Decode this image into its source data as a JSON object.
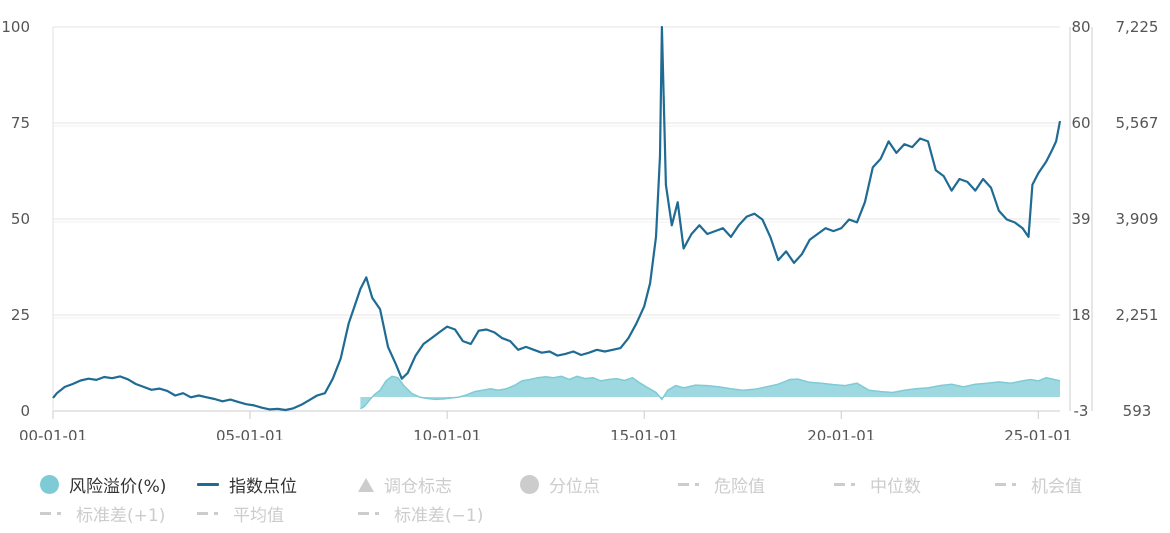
{
  "chart_data": {
    "type": "line",
    "x_axis": {
      "tick_labels": [
        "00-01-01",
        "05-01-01",
        "10-01-01",
        "15-01-01",
        "20-01-01",
        "25-01-01"
      ],
      "tick_dates": [
        2000.0,
        2005.0,
        2010.0,
        2015.0,
        2020.0,
        2025.0
      ],
      "range": [
        2000.0,
        2025.55
      ]
    },
    "y_axis_left": {
      "tick_labels": [
        "0",
        "25",
        "50",
        "75",
        "100"
      ],
      "range": [
        0,
        100
      ]
    },
    "y_axis_right_1": {
      "tick_labels": [
        "-3",
        "18",
        "39",
        "60",
        "80"
      ],
      "range": [
        -3,
        80
      ]
    },
    "y_axis_right_2": {
      "tick_labels": [
        "593",
        "2,251",
        "3,909",
        "5,567",
        "7,225"
      ],
      "range": [
        593,
        7225
      ]
    },
    "grid": true,
    "legend_position": "bottom",
    "series": [
      {
        "name": "风险溢价(%)",
        "type": "area",
        "axis": "right_1",
        "color": "#7ecbd6",
        "points": [
          [
            2007.8,
            -2.5
          ],
          [
            2007.9,
            -2.0
          ],
          [
            2008.0,
            -1.0
          ],
          [
            2008.15,
            0.5
          ],
          [
            2008.3,
            1.5
          ],
          [
            2008.45,
            3.5
          ],
          [
            2008.6,
            4.5
          ],
          [
            2008.75,
            4.2
          ],
          [
            2008.9,
            2.5
          ],
          [
            2009.1,
            0.8
          ],
          [
            2009.3,
            0.0
          ],
          [
            2009.5,
            -0.3
          ],
          [
            2009.7,
            -0.5
          ],
          [
            2009.9,
            -0.4
          ],
          [
            2010.1,
            -0.2
          ],
          [
            2010.3,
            0.0
          ],
          [
            2010.5,
            0.5
          ],
          [
            2010.7,
            1.2
          ],
          [
            2010.9,
            1.5
          ],
          [
            2011.1,
            1.8
          ],
          [
            2011.3,
            1.5
          ],
          [
            2011.5,
            1.8
          ],
          [
            2011.7,
            2.5
          ],
          [
            2011.9,
            3.5
          ],
          [
            2012.1,
            3.8
          ],
          [
            2012.3,
            4.2
          ],
          [
            2012.5,
            4.4
          ],
          [
            2012.7,
            4.2
          ],
          [
            2012.9,
            4.5
          ],
          [
            2013.1,
            3.8
          ],
          [
            2013.3,
            4.5
          ],
          [
            2013.5,
            4.0
          ],
          [
            2013.7,
            4.2
          ],
          [
            2013.9,
            3.5
          ],
          [
            2014.1,
            3.8
          ],
          [
            2014.3,
            4.0
          ],
          [
            2014.5,
            3.6
          ],
          [
            2014.7,
            4.2
          ],
          [
            2014.9,
            3.0
          ],
          [
            2015.1,
            2.0
          ],
          [
            2015.3,
            1.0
          ],
          [
            2015.45,
            -0.5
          ],
          [
            2015.6,
            1.5
          ],
          [
            2015.8,
            2.5
          ],
          [
            2016.0,
            2.0
          ],
          [
            2016.3,
            2.6
          ],
          [
            2016.6,
            2.5
          ],
          [
            2016.9,
            2.2
          ],
          [
            2017.2,
            1.8
          ],
          [
            2017.5,
            1.5
          ],
          [
            2017.8,
            1.7
          ],
          [
            2018.1,
            2.2
          ],
          [
            2018.4,
            2.8
          ],
          [
            2018.7,
            3.8
          ],
          [
            2018.9,
            3.9
          ],
          [
            2019.2,
            3.2
          ],
          [
            2019.5,
            3.0
          ],
          [
            2019.8,
            2.7
          ],
          [
            2020.1,
            2.5
          ],
          [
            2020.4,
            3.0
          ],
          [
            2020.7,
            1.5
          ],
          [
            2021.0,
            1.2
          ],
          [
            2021.3,
            1.0
          ],
          [
            2021.6,
            1.5
          ],
          [
            2021.9,
            1.8
          ],
          [
            2022.2,
            2.0
          ],
          [
            2022.5,
            2.5
          ],
          [
            2022.8,
            2.8
          ],
          [
            2023.1,
            2.2
          ],
          [
            2023.4,
            2.8
          ],
          [
            2023.7,
            3.0
          ],
          [
            2024.0,
            3.3
          ],
          [
            2024.3,
            3.0
          ],
          [
            2024.6,
            3.5
          ],
          [
            2024.8,
            3.8
          ],
          [
            2025.0,
            3.5
          ],
          [
            2025.2,
            4.2
          ],
          [
            2025.4,
            3.8
          ],
          [
            2025.55,
            3.5
          ]
        ]
      },
      {
        "name": "指数点位",
        "type": "line",
        "axis": "right_2",
        "color": "#1f6b94",
        "points": [
          [
            2000.0,
            820
          ],
          [
            2000.1,
            900
          ],
          [
            2000.3,
            1010
          ],
          [
            2000.5,
            1060
          ],
          [
            2000.7,
            1120
          ],
          [
            2000.9,
            1150
          ],
          [
            2001.1,
            1130
          ],
          [
            2001.3,
            1180
          ],
          [
            2001.5,
            1160
          ],
          [
            2001.7,
            1190
          ],
          [
            2001.9,
            1140
          ],
          [
            2002.1,
            1060
          ],
          [
            2002.3,
            1010
          ],
          [
            2002.5,
            960
          ],
          [
            2002.7,
            980
          ],
          [
            2002.9,
            940
          ],
          [
            2003.1,
            860
          ],
          [
            2003.3,
            900
          ],
          [
            2003.5,
            830
          ],
          [
            2003.7,
            860
          ],
          [
            2003.9,
            830
          ],
          [
            2004.1,
            800
          ],
          [
            2004.3,
            760
          ],
          [
            2004.5,
            790
          ],
          [
            2004.7,
            750
          ],
          [
            2004.9,
            710
          ],
          [
            2005.1,
            690
          ],
          [
            2005.3,
            650
          ],
          [
            2005.5,
            620
          ],
          [
            2005.7,
            630
          ],
          [
            2005.9,
            610
          ],
          [
            2006.1,
            640
          ],
          [
            2006.3,
            700
          ],
          [
            2006.5,
            780
          ],
          [
            2006.7,
            860
          ],
          [
            2006.9,
            900
          ],
          [
            2007.1,
            1150
          ],
          [
            2007.3,
            1500
          ],
          [
            2007.5,
            2100
          ],
          [
            2007.65,
            2400
          ],
          [
            2007.8,
            2700
          ],
          [
            2007.95,
            2900
          ],
          [
            2008.1,
            2550
          ],
          [
            2008.3,
            2350
          ],
          [
            2008.5,
            1700
          ],
          [
            2008.7,
            1400
          ],
          [
            2008.85,
            1150
          ],
          [
            2009.0,
            1250
          ],
          [
            2009.2,
            1550
          ],
          [
            2009.4,
            1750
          ],
          [
            2009.6,
            1850
          ],
          [
            2009.8,
            1950
          ],
          [
            2010.0,
            2050
          ],
          [
            2010.2,
            2000
          ],
          [
            2010.4,
            1800
          ],
          [
            2010.6,
            1750
          ],
          [
            2010.8,
            1980
          ],
          [
            2011.0,
            2000
          ],
          [
            2011.2,
            1950
          ],
          [
            2011.4,
            1850
          ],
          [
            2011.6,
            1800
          ],
          [
            2011.8,
            1650
          ],
          [
            2012.0,
            1700
          ],
          [
            2012.2,
            1650
          ],
          [
            2012.4,
            1600
          ],
          [
            2012.6,
            1620
          ],
          [
            2012.8,
            1550
          ],
          [
            2013.0,
            1580
          ],
          [
            2013.2,
            1620
          ],
          [
            2013.4,
            1560
          ],
          [
            2013.6,
            1600
          ],
          [
            2013.8,
            1650
          ],
          [
            2014.0,
            1620
          ],
          [
            2014.2,
            1650
          ],
          [
            2014.4,
            1680
          ],
          [
            2014.6,
            1850
          ],
          [
            2014.8,
            2100
          ],
          [
            2015.0,
            2400
          ],
          [
            2015.15,
            2800
          ],
          [
            2015.3,
            3600
          ],
          [
            2015.4,
            5000
          ],
          [
            2015.45,
            7225
          ],
          [
            2015.55,
            4500
          ],
          [
            2015.7,
            3800
          ],
          [
            2015.85,
            4200
          ],
          [
            2016.0,
            3400
          ],
          [
            2016.2,
            3650
          ],
          [
            2016.4,
            3800
          ],
          [
            2016.6,
            3650
          ],
          [
            2016.8,
            3700
          ],
          [
            2017.0,
            3750
          ],
          [
            2017.2,
            3600
          ],
          [
            2017.4,
            3800
          ],
          [
            2017.6,
            3950
          ],
          [
            2017.8,
            4000
          ],
          [
            2018.0,
            3900
          ],
          [
            2018.2,
            3600
          ],
          [
            2018.4,
            3200
          ],
          [
            2018.6,
            3350
          ],
          [
            2018.8,
            3150
          ],
          [
            2019.0,
            3300
          ],
          [
            2019.2,
            3550
          ],
          [
            2019.4,
            3650
          ],
          [
            2019.6,
            3750
          ],
          [
            2019.8,
            3700
          ],
          [
            2020.0,
            3750
          ],
          [
            2020.2,
            3900
          ],
          [
            2020.4,
            3850
          ],
          [
            2020.6,
            4200
          ],
          [
            2020.8,
            4800
          ],
          [
            2021.0,
            4950
          ],
          [
            2021.2,
            5250
          ],
          [
            2021.4,
            5050
          ],
          [
            2021.6,
            5200
          ],
          [
            2021.8,
            5150
          ],
          [
            2022.0,
            5300
          ],
          [
            2022.2,
            5250
          ],
          [
            2022.4,
            4750
          ],
          [
            2022.6,
            4650
          ],
          [
            2022.8,
            4400
          ],
          [
            2023.0,
            4600
          ],
          [
            2023.2,
            4550
          ],
          [
            2023.4,
            4400
          ],
          [
            2023.6,
            4600
          ],
          [
            2023.8,
            4450
          ],
          [
            2024.0,
            4050
          ],
          [
            2024.2,
            3900
          ],
          [
            2024.4,
            3850
          ],
          [
            2024.6,
            3750
          ],
          [
            2024.75,
            3600
          ],
          [
            2024.85,
            4500
          ],
          [
            2025.0,
            4700
          ],
          [
            2025.2,
            4900
          ],
          [
            2025.35,
            5100
          ],
          [
            2025.45,
            5250
          ],
          [
            2025.55,
            5600
          ]
        ]
      }
    ]
  },
  "legend": {
    "row1": [
      {
        "label": "风险溢价(%)",
        "symbol": "circle",
        "color": "#7ecbd6",
        "active": true
      },
      {
        "label": "指数点位",
        "symbol": "line",
        "color": "#1f6b94",
        "active": true
      },
      {
        "label": "调仓标志",
        "symbol": "triangle",
        "color": "#cccccc",
        "active": false
      },
      {
        "label": "分位点",
        "symbol": "circle",
        "color": "#cccccc",
        "active": false
      },
      {
        "label": "危险值",
        "symbol": "dash",
        "color": "#cccccc",
        "active": false
      },
      {
        "label": "中位数",
        "symbol": "dash",
        "color": "#cccccc",
        "active": false
      },
      {
        "label": "机会值",
        "symbol": "dash",
        "color": "#cccccc",
        "active": false
      }
    ],
    "row2": [
      {
        "label": "标准差(+1)",
        "symbol": "dash",
        "color": "#cccccc",
        "active": false
      },
      {
        "label": "平均值",
        "symbol": "dash",
        "color": "#cccccc",
        "active": false
      },
      {
        "label": "标准差(−1)",
        "symbol": "dash",
        "color": "#cccccc",
        "active": false
      }
    ]
  }
}
